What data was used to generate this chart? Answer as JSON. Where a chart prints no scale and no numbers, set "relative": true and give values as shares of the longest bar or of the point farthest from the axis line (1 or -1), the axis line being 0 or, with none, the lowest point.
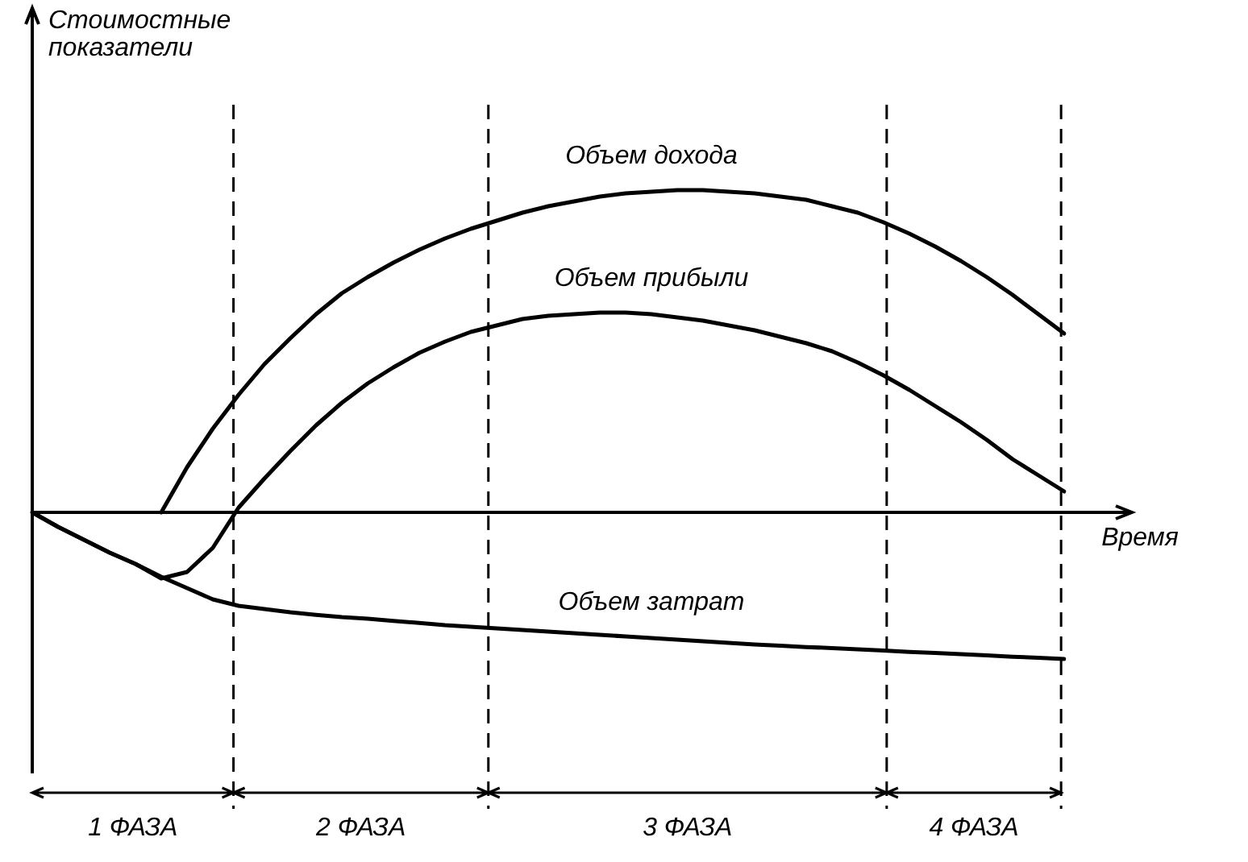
{
  "chart_data": {
    "type": "line",
    "ylabel": "Стоимостные показатели",
    "xlabel": "Время",
    "relative": true,
    "legend": false,
    "marker": "none",
    "categories": [
      null,
      null,
      null,
      null,
      null,
      null,
      null,
      null,
      null,
      null,
      null,
      null,
      null,
      null,
      null,
      null,
      null,
      null,
      null,
      null,
      null,
      null,
      null,
      null,
      null,
      null,
      null,
      null,
      null,
      null,
      null,
      null,
      null,
      null,
      null,
      null,
      null,
      null,
      null,
      null,
      null
    ],
    "series": [
      {
        "name": "Объем дохода",
        "color": "#000000",
        "values": [
          null,
          null,
          null,
          null,
          null,
          0,
          0.14,
          0.26,
          0.365,
          0.46,
          0.54,
          0.615,
          0.68,
          0.73,
          0.775,
          0.815,
          0.85,
          0.88,
          0.905,
          0.93,
          0.95,
          0.965,
          0.98,
          0.99,
          0.995,
          1,
          1,
          0.995,
          0.99,
          0.98,
          0.97,
          0.95,
          0.93,
          0.9,
          0.865,
          0.825,
          0.78,
          0.73,
          0.675,
          0.615,
          0.555
        ]
      },
      {
        "name": "Объем прибыли",
        "color": "#000000",
        "values": [
          0,
          -0.045,
          -0.085,
          -0.125,
          -0.16,
          -0.205,
          -0.185,
          -0.11,
          0.015,
          0.105,
          0.19,
          0.27,
          0.34,
          0.4,
          0.45,
          0.495,
          0.53,
          0.56,
          0.58,
          0.6,
          0.61,
          0.615,
          0.62,
          0.62,
          0.615,
          0.605,
          0.595,
          0.58,
          0.565,
          0.545,
          0.525,
          0.5,
          0.465,
          0.425,
          0.38,
          0.33,
          0.28,
          0.225,
          0.165,
          0.115,
          0.065
        ]
      },
      {
        "name": "Объем затрат",
        "color": "#000000",
        "values": [
          0,
          -0.045,
          -0.085,
          -0.125,
          -0.16,
          -0.2,
          -0.235,
          -0.27,
          -0.29,
          -0.3,
          -0.31,
          -0.318,
          -0.325,
          -0.33,
          -0.337,
          -0.343,
          -0.35,
          -0.355,
          -0.36,
          -0.365,
          -0.37,
          -0.375,
          -0.38,
          -0.385,
          -0.39,
          -0.395,
          -0.4,
          -0.405,
          -0.41,
          -0.414,
          -0.418,
          -0.421,
          -0.425,
          -0.429,
          -0.433,
          -0.436,
          -0.44,
          -0.444,
          -0.448,
          -0.451,
          -0.455
        ]
      }
    ],
    "annotations": [
      "1 ФАЗА",
      "2 ФАЗА",
      "3 ФАЗА",
      "4 ФАЗА"
    ]
  }
}
